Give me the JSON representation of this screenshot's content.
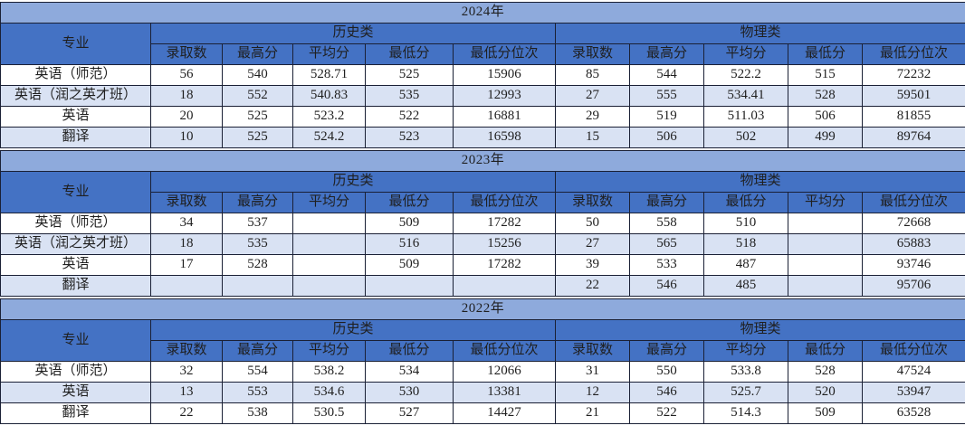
{
  "colors": {
    "year_band": "#8EAADC",
    "header_fill": "#4472C4",
    "header_text": "#17365D",
    "alt_row": "#D9E2F3",
    "grid_border": "#1A2035",
    "data_text": "#1F1F1F"
  },
  "table": {
    "major_header": "专业",
    "sections": [
      {
        "year": "2024年",
        "groups": [
          "历史类",
          "物理类"
        ],
        "subheaders": [
          [
            "录取数",
            "最高分",
            "平均分",
            "最低分",
            "最低分位次"
          ],
          [
            "录取数",
            "最高分",
            "平均分",
            "最低分",
            "最低分位次"
          ]
        ],
        "rows": [
          {
            "major": "英语（师范）",
            "values": [
              "56",
              "540",
              "528.71",
              "525",
              "15906",
              "85",
              "544",
              "522.2",
              "515",
              "72232"
            ]
          },
          {
            "major": "英语（润之英才班）",
            "values": [
              "18",
              "552",
              "540.83",
              "535",
              "12993",
              "27",
              "555",
              "534.41",
              "528",
              "59501"
            ]
          },
          {
            "major": "英语",
            "values": [
              "20",
              "525",
              "523.2",
              "522",
              "16881",
              "29",
              "519",
              "511.03",
              "506",
              "81855"
            ]
          },
          {
            "major": "翻译",
            "values": [
              "10",
              "525",
              "524.2",
              "523",
              "16598",
              "15",
              "506",
              "502",
              "499",
              "89764"
            ]
          }
        ]
      },
      {
        "year": "2023年",
        "groups": [
          "历史类",
          "物理类"
        ],
        "subheaders": [
          [
            "录取数",
            "最高分",
            "平均分",
            "最低分",
            "最低分位次"
          ],
          [
            "录取数",
            "最高分",
            "最低分",
            "平均分",
            "最低分位次"
          ]
        ],
        "rows": [
          {
            "major": "英语（师范）",
            "values": [
              "34",
              "537",
              "",
              "509",
              "17282",
              "50",
              "558",
              "510",
              "",
              "72668"
            ]
          },
          {
            "major": "英语（润之英才班）",
            "values": [
              "18",
              "535",
              "",
              "516",
              "15256",
              "27",
              "565",
              "518",
              "",
              "65883"
            ]
          },
          {
            "major": "英语",
            "values": [
              "17",
              "528",
              "",
              "509",
              "17282",
              "39",
              "533",
              "487",
              "",
              "93746"
            ]
          },
          {
            "major": "翻译",
            "values": [
              "",
              "",
              "",
              "",
              "",
              "22",
              "546",
              "485",
              "",
              "95706"
            ]
          }
        ]
      },
      {
        "year": "2022年",
        "groups": [
          "历史类",
          "物理类"
        ],
        "subheaders": [
          [
            "录取数",
            "最高分",
            "平均分",
            "最低分",
            "最低分位次"
          ],
          [
            "录取数",
            "最高分",
            "平均分",
            "最低分",
            "最低分位次"
          ]
        ],
        "rows": [
          {
            "major": "英语（师范）",
            "values": [
              "32",
              "554",
              "538.2",
              "534",
              "12066",
              "31",
              "550",
              "533.8",
              "528",
              "47524"
            ]
          },
          {
            "major": "英语",
            "values": [
              "13",
              "553",
              "534.6",
              "530",
              "13381",
              "12",
              "546",
              "525.7",
              "520",
              "53947"
            ]
          },
          {
            "major": "翻译",
            "values": [
              "22",
              "538",
              "530.5",
              "527",
              "14427",
              "21",
              "522",
              "514.3",
              "509",
              "63528"
            ]
          }
        ]
      }
    ]
  }
}
